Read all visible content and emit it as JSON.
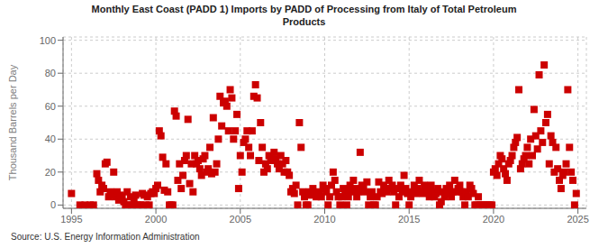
{
  "chart_data": {
    "type": "scatter",
    "title": "Monthly East Coast (PADD 1) Imports by PADD of Processing from Italy of Total Petroleum\nProducts",
    "y_label": "Thousand Barrels per Day",
    "annotations": [
      "Source: U.S. Energy Information Administration"
    ],
    "color": "#cc0000",
    "marker": "square",
    "grid": true,
    "xlim": [
      1994.5,
      2025.5
    ],
    "ylim": [
      -2,
      102
    ],
    "xticks": [
      1995,
      2000,
      2005,
      2010,
      2015,
      2020,
      2025
    ],
    "yticks": [
      0,
      20,
      40,
      60,
      80,
      100
    ],
    "x": [
      1995.0,
      1995.5,
      1995.8,
      1996.1,
      1996.3,
      1996.5,
      1996.6,
      1996.7,
      1996.8,
      1996.9,
      1997.0,
      1997.1,
      1997.2,
      1997.3,
      1997.4,
      1997.5,
      1997.6,
      1997.7,
      1997.8,
      1997.9,
      1998.0,
      1998.1,
      1998.2,
      1998.3,
      1998.4,
      1998.5,
      1998.6,
      1998.7,
      1998.8,
      1998.9,
      1999.0,
      1999.1,
      1999.2,
      1999.3,
      1999.4,
      1999.5,
      1999.6,
      1999.7,
      1999.8,
      1999.9,
      2000.0,
      2000.1,
      2000.2,
      2000.3,
      2000.4,
      2000.5,
      2000.6,
      2000.7,
      2000.8,
      2000.9,
      2001.0,
      2001.1,
      2001.2,
      2001.3,
      2001.4,
      2001.5,
      2001.6,
      2001.7,
      2001.8,
      2001.9,
      2002.0,
      2002.1,
      2002.2,
      2002.3,
      2002.4,
      2002.5,
      2002.6,
      2002.7,
      2002.8,
      2002.9,
      2003.0,
      2003.1,
      2003.2,
      2003.3,
      2003.4,
      2003.5,
      2003.6,
      2003.7,
      2003.8,
      2003.9,
      2004.0,
      2004.1,
      2004.2,
      2004.3,
      2004.4,
      2004.5,
      2004.6,
      2004.7,
      2004.8,
      2004.9,
      2005.0,
      2005.1,
      2005.2,
      2005.3,
      2005.4,
      2005.5,
      2005.6,
      2005.7,
      2005.8,
      2005.9,
      2006.0,
      2006.1,
      2006.2,
      2006.3,
      2006.4,
      2006.5,
      2006.6,
      2006.7,
      2006.8,
      2006.9,
      2007.0,
      2007.1,
      2007.2,
      2007.3,
      2007.4,
      2007.5,
      2007.6,
      2007.7,
      2007.8,
      2007.9,
      2008.0,
      2008.1,
      2008.2,
      2008.3,
      2008.4,
      2008.5,
      2008.6,
      2008.7,
      2008.8,
      2008.9,
      2009.0,
      2009.1,
      2009.2,
      2009.3,
      2009.4,
      2009.5,
      2009.6,
      2009.7,
      2009.8,
      2009.9,
      2010.0,
      2010.1,
      2010.2,
      2010.3,
      2010.4,
      2010.5,
      2010.6,
      2010.7,
      2010.8,
      2010.9,
      2011.0,
      2011.1,
      2011.2,
      2011.3,
      2011.4,
      2011.5,
      2011.6,
      2011.7,
      2011.8,
      2011.9,
      2012.0,
      2012.1,
      2012.2,
      2012.3,
      2012.4,
      2012.5,
      2012.6,
      2012.7,
      2012.8,
      2012.9,
      2013.0,
      2013.1,
      2013.2,
      2013.3,
      2013.4,
      2013.5,
      2013.6,
      2013.7,
      2013.8,
      2013.9,
      2014.0,
      2014.1,
      2014.2,
      2014.3,
      2014.4,
      2014.5,
      2014.6,
      2014.7,
      2014.8,
      2014.9,
      2015.0,
      2015.1,
      2015.2,
      2015.3,
      2015.4,
      2015.5,
      2015.6,
      2015.7,
      2015.8,
      2015.9,
      2016.0,
      2016.1,
      2016.2,
      2016.3,
      2016.4,
      2016.5,
      2016.6,
      2016.7,
      2016.8,
      2016.9,
      2017.0,
      2017.1,
      2017.2,
      2017.3,
      2017.4,
      2017.5,
      2017.6,
      2017.7,
      2017.8,
      2017.9,
      2018.0,
      2018.1,
      2018.2,
      2018.3,
      2018.4,
      2018.5,
      2018.6,
      2018.7,
      2018.8,
      2018.9,
      2019.0,
      2019.1,
      2019.2,
      2019.3,
      2019.4,
      2019.5,
      2019.6,
      2019.7,
      2019.8,
      2019.9,
      2020.0,
      2020.1,
      2020.2,
      2020.3,
      2020.4,
      2020.5,
      2020.6,
      2020.7,
      2020.8,
      2020.9,
      2021.0,
      2021.1,
      2021.2,
      2021.3,
      2021.4,
      2021.5,
      2021.6,
      2021.7,
      2021.8,
      2021.9,
      2022.0,
      2022.1,
      2022.2,
      2022.3,
      2022.4,
      2022.5,
      2022.6,
      2022.7,
      2022.8,
      2022.9,
      2023.0,
      2023.1,
      2023.2,
      2023.3,
      2023.4,
      2023.5,
      2023.6,
      2023.7,
      2023.8,
      2023.9,
      2024.0,
      2024.1,
      2024.2,
      2024.3,
      2024.4,
      2024.5,
      2024.6,
      2024.7,
      2024.8,
      2024.9
    ],
    "values": [
      7,
      0,
      0,
      0,
      0,
      19,
      15,
      8,
      12,
      10,
      25,
      26,
      5,
      8,
      6,
      20,
      5,
      8,
      3,
      6,
      5,
      2,
      0,
      8,
      0,
      5,
      0,
      2,
      6,
      0,
      0,
      0,
      7,
      6,
      0,
      5,
      0,
      7,
      8,
      7,
      10,
      12,
      45,
      42,
      29,
      9,
      25,
      8,
      0,
      0,
      0,
      57,
      54,
      15,
      25,
      10,
      18,
      27,
      30,
      52,
      13,
      25,
      8,
      30,
      25,
      27,
      22,
      18,
      28,
      30,
      20,
      22,
      35,
      19,
      53,
      20,
      25,
      40,
      66,
      48,
      62,
      63,
      60,
      45,
      70,
      65,
      40,
      45,
      55,
      10,
      30,
      20,
      38,
      40,
      45,
      35,
      30,
      45,
      66,
      73,
      65,
      27,
      50,
      35,
      20,
      25,
      22,
      30,
      27,
      28,
      32,
      28,
      25,
      22,
      30,
      25,
      20,
      27,
      20,
      18,
      8,
      10,
      7,
      12,
      0,
      50,
      35,
      8,
      5,
      0,
      0,
      8,
      6,
      10,
      7,
      5,
      8,
      6,
      5,
      12,
      10,
      8,
      0,
      5,
      12,
      20,
      15,
      8,
      5,
      0,
      5,
      10,
      8,
      0,
      5,
      12,
      8,
      15,
      10,
      5,
      8,
      32,
      12,
      10,
      8,
      14,
      0,
      5,
      8,
      0,
      0,
      5,
      14,
      8,
      7,
      12,
      10,
      8,
      15,
      10,
      12,
      8,
      0,
      10,
      5,
      12,
      8,
      18,
      10,
      7,
      0,
      5,
      8,
      12,
      7,
      10,
      15,
      8,
      7,
      12,
      10,
      8,
      5,
      12,
      8,
      5,
      7,
      10,
      0,
      2,
      8,
      5,
      10,
      7,
      12,
      5,
      8,
      15,
      8,
      10,
      12,
      8,
      5,
      0,
      8,
      5,
      12,
      10,
      7,
      0,
      0,
      5,
      0,
      0,
      0,
      0,
      0,
      0,
      0,
      0,
      20,
      22,
      18,
      25,
      30,
      28,
      22,
      19,
      15,
      25,
      27,
      30,
      35,
      38,
      41,
      70,
      22,
      25,
      28,
      30,
      35,
      25,
      40,
      30,
      58,
      42,
      34,
      79,
      45,
      38,
      85,
      50,
      55,
      25,
      42,
      38,
      20,
      35,
      22,
      15,
      10,
      18,
      20,
      25,
      70,
      35,
      20,
      15,
      0,
      7
    ]
  }
}
